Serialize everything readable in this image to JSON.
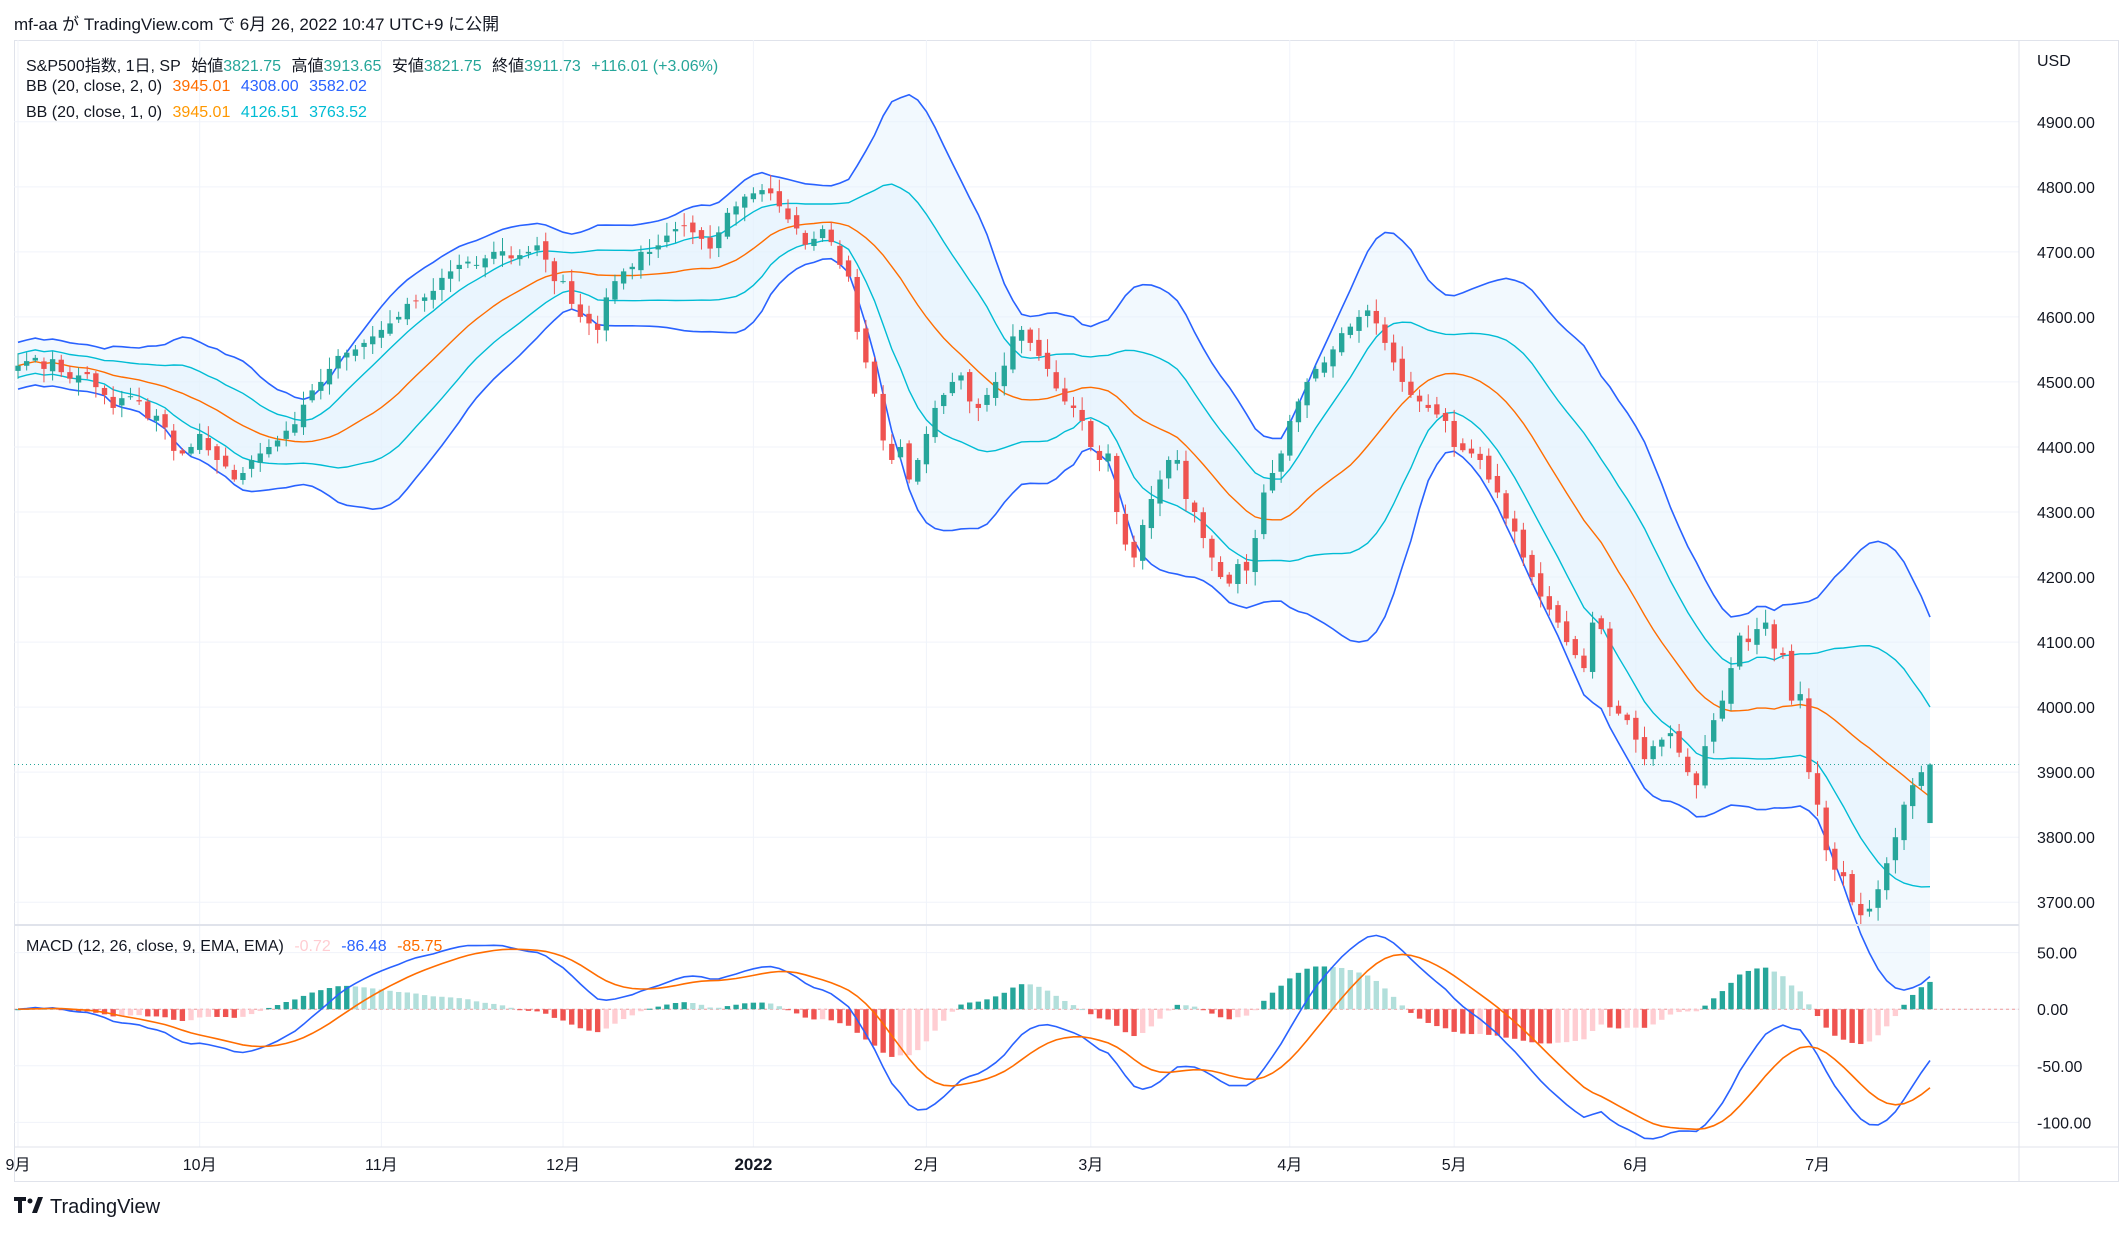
{
  "header": {
    "text": "mf-aa が TradingView.com で 6月 26, 2022 10:47 UTC+9 に公開"
  },
  "footer": {
    "brand": "TradingView",
    "logo": "tradingview-logo-icon"
  },
  "legend": {
    "symbol": "S&P500指数, 1日, SP",
    "open_label": "始値",
    "open": "3821.75",
    "high_label": "高値",
    "high": "3913.65",
    "low_label": "安値",
    "low": "3821.75",
    "close_label": "終値",
    "close": "3911.73",
    "change": "+116.01 (+3.06%)",
    "bb2_label": "BB (20, close, 2, 0)",
    "bb2_basis": "3945.01",
    "bb2_upper": "4308.00",
    "bb2_lower": "3582.02",
    "bb1_label": "BB (20, close, 1, 0)",
    "bb1_basis": "3945.01",
    "bb1_upper": "4126.51",
    "bb1_lower": "3763.52",
    "macd_label": "MACD (12, 26, close, 9, EMA, EMA)",
    "macd_hist": "-0.72",
    "macd_line": "-86.48",
    "macd_signal": "-85.75"
  },
  "colors": {
    "up": "#26a69a",
    "down": "#ef5350",
    "bb_outer": "#2962ff",
    "bb_inner": "#00bcd4",
    "bb_basis": "#ff6d00",
    "bb_fill": "#e3f2fd",
    "hist_up_strong": "#26a69a",
    "hist_up_weak": "#b2dfdb",
    "hist_down_strong": "#ef5350",
    "hist_down_weak": "#ffcdd2",
    "bb1_basis_legend": "#ff9800"
  },
  "chart_data": {
    "type": "candlestick",
    "currency": "USD",
    "price_ticks": [
      "4900.00",
      "4800.00",
      "4700.00",
      "4600.00",
      "4500.00",
      "4400.00",
      "4300.00",
      "4200.00",
      "4100.00",
      "4000.00",
      "3900.00",
      "3800.00",
      "3700.00"
    ],
    "macd_ticks": [
      "50.00",
      "0.00",
      "-50.00",
      "-100.00"
    ],
    "price_range": [
      3665,
      4995
    ],
    "macd_range": [
      -120,
      70
    ],
    "month_labels": [
      "9月",
      "10月",
      "11月",
      "12月",
      "2022",
      "2月",
      "3月",
      "4月",
      "5月",
      "6月",
      "7月"
    ],
    "month_label_index": [
      0,
      21,
      42,
      63,
      85,
      105,
      124,
      147,
      166,
      187,
      208
    ],
    "last_price": 3911.73,
    "closes": [
      4525,
      4532,
      4537,
      4520,
      4535,
      4515,
      4505,
      4510,
      4512,
      4492,
      4480,
      4460,
      4475,
      4478,
      4470,
      4444,
      4448,
      4430,
      4394,
      4390,
      4400,
      4420,
      4395,
      4380,
      4370,
      4350,
      4360,
      4380,
      4390,
      4400,
      4410,
      4425,
      4435,
      4465,
      4487,
      4500,
      4520,
      4540,
      4545,
      4550,
      4560,
      4570,
      4580,
      4590,
      4600,
      4620,
      4625,
      4630,
      4640,
      4660,
      4670,
      4680,
      4685,
      4680,
      4690,
      4700,
      4701,
      4690,
      4695,
      4700,
      4710,
      4688,
      4655,
      4655,
      4620,
      4600,
      4590,
      4580,
      4630,
      4655,
      4670,
      4677,
      4700,
      4700,
      4710,
      4725,
      4735,
      4740,
      4730,
      4720,
      4705,
      4730,
      4760,
      4770,
      4785,
      4790,
      4795,
      4790,
      4770,
      4750,
      4736,
      4711,
      4720,
      4735,
      4715,
      4680,
      4662,
      4577,
      4530,
      4482,
      4410,
      4380,
      4400,
      4350,
      4380,
      4420,
      4460,
      4480,
      4500,
      4510,
      4470,
      4460,
      4480,
      4500,
      4525,
      4570,
      4580,
      4560,
      4540,
      4520,
      4490,
      4470,
      4460,
      4440,
      4400,
      4380,
      4390,
      4300,
      4250,
      4230,
      4280,
      4320,
      4350,
      4380,
      4380,
      4320,
      4300,
      4260,
      4230,
      4200,
      4190,
      4220,
      4210,
      4260,
      4330,
      4360,
      4390,
      4440,
      4470,
      4500,
      4520,
      4530,
      4550,
      4575,
      4585,
      4600,
      4610,
      4590,
      4560,
      4530,
      4500,
      4480,
      4470,
      4460,
      4450,
      4440,
      4400,
      4395,
      4390,
      4380,
      4350,
      4330,
      4290,
      4270,
      4230,
      4200,
      4170,
      4150,
      4130,
      4100,
      4080,
      4060,
      4130,
      4120,
      4000,
      3990,
      3980,
      3950,
      3920,
      3940,
      3950,
      3960,
      3930,
      3900,
      3880,
      3940,
      3980,
      4010,
      4060,
      4110,
      4100,
      4120,
      4130,
      4090,
      4080,
      4010,
      4020,
      3900,
      3850,
      3780,
      3750,
      3740,
      3700,
      3680,
      3690,
      3720,
      3760,
      3800,
      3850,
      3880,
      3900,
      3911.73
    ]
  }
}
